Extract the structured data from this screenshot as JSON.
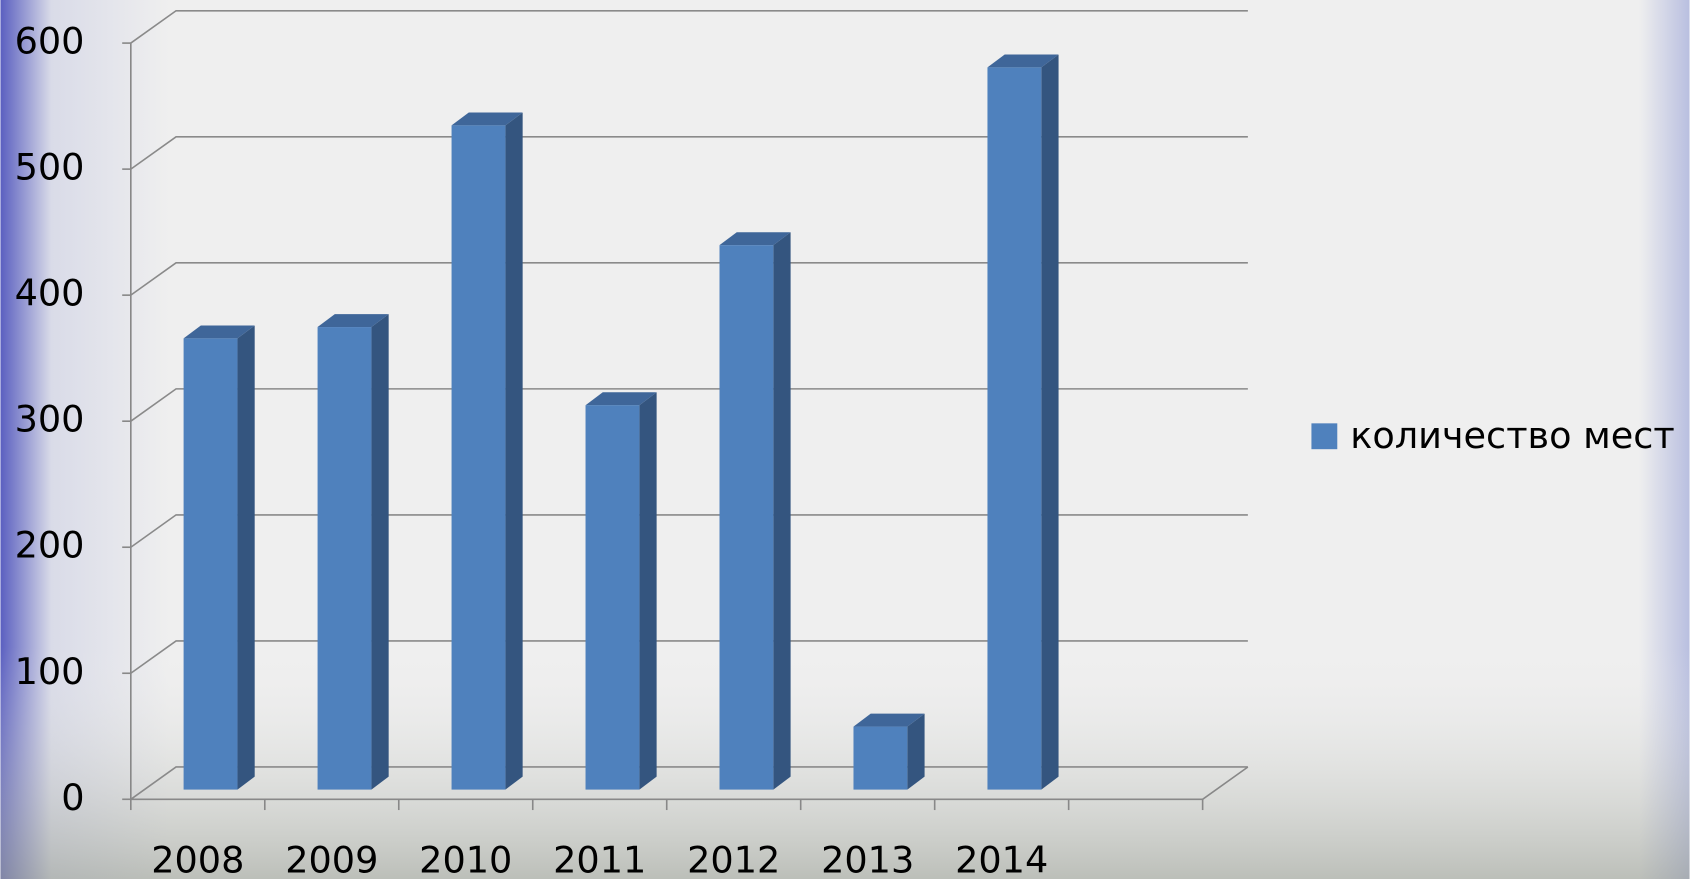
{
  "chart_data": {
    "type": "bar3d",
    "categories": [
      "2008",
      "2009",
      "2010",
      "2011",
      "2012",
      "2013",
      "2014",
      null
    ],
    "series": [
      {
        "name": "количество мест",
        "color": "#4f81bd",
        "values": [
          358,
          367,
          527,
          305,
          432,
          50,
          573,
          null
        ]
      }
    ],
    "ylim": [
      0,
      600
    ],
    "yticks": [
      0,
      100,
      200,
      300,
      400,
      500,
      600
    ],
    "grid": true,
    "legend": "right"
  }
}
